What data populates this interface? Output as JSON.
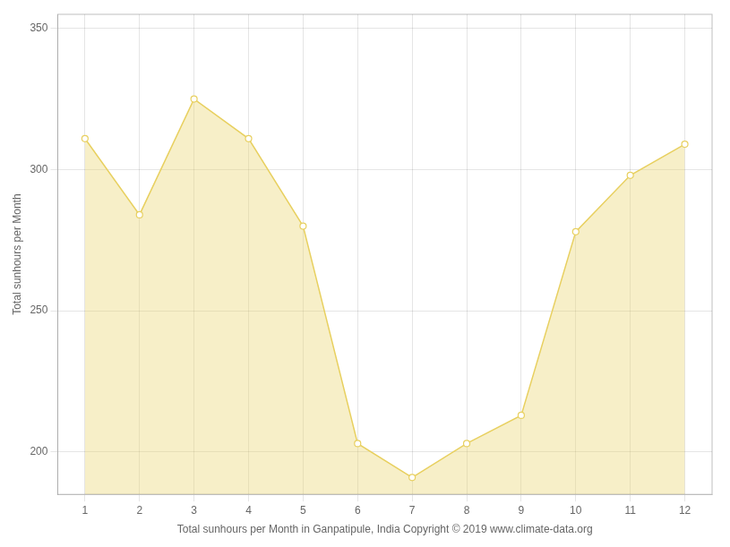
{
  "chart_data": {
    "type": "line",
    "x": [
      1,
      2,
      3,
      4,
      5,
      6,
      7,
      8,
      9,
      10,
      11,
      12
    ],
    "values": [
      311,
      284,
      325,
      311,
      280,
      203,
      191,
      203,
      213,
      278,
      298,
      309
    ],
    "color": "#E8D060",
    "marker": "circle",
    "xlabel": "Total sunhours per Month in Ganpatipule, India Copyright © 2019 www.climate-data.org",
    "ylabel": "Total sunhours per Month",
    "xlim": [
      0.5,
      12.5
    ],
    "xticks": [
      1,
      2,
      3,
      4,
      5,
      6,
      7,
      8,
      9,
      10,
      11,
      12
    ],
    "ylim": [
      185,
      355
    ],
    "yticks": [
      200,
      250,
      300,
      350
    ],
    "grid": true
  }
}
